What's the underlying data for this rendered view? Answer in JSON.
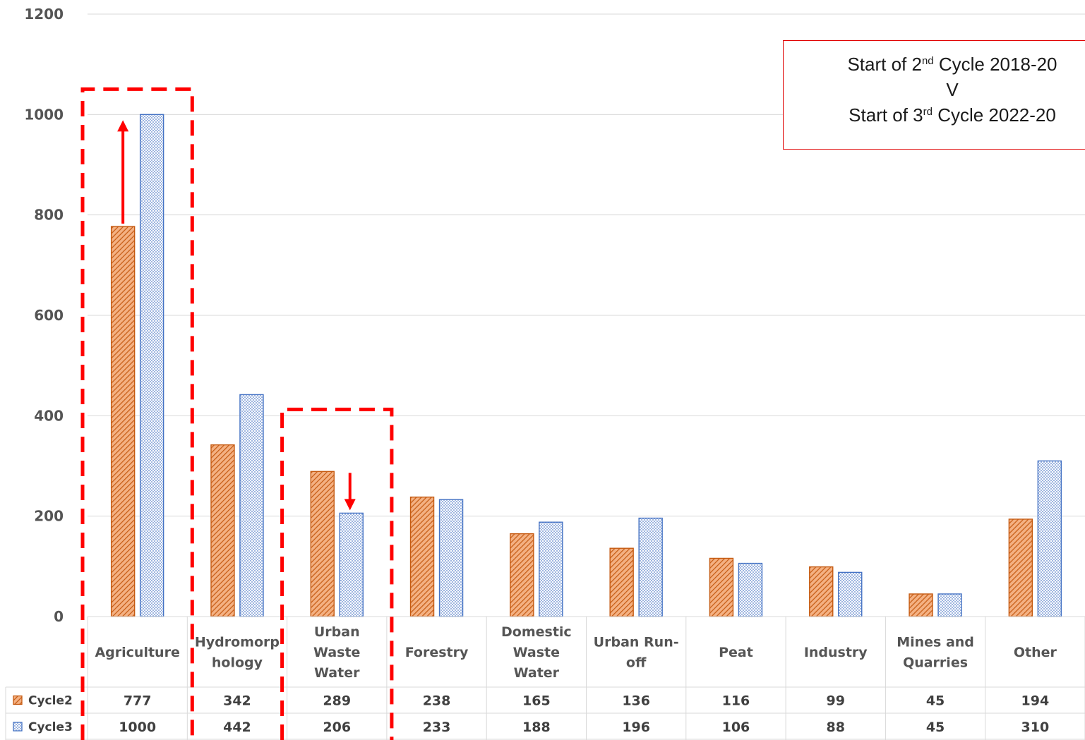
{
  "chart_data": {
    "type": "bar",
    "title": "",
    "xlabel": "",
    "ylabel": "",
    "ylim": [
      0,
      1200
    ],
    "yticks": [
      0,
      200,
      400,
      600,
      800,
      1000,
      1200
    ],
    "grid": true,
    "categories": [
      [
        "Agriculture"
      ],
      [
        "Hydromorp",
        "hology"
      ],
      [
        "Urban",
        "Waste",
        "Water"
      ],
      [
        "Forestry"
      ],
      [
        "Domestic",
        "Waste",
        "Water"
      ],
      [
        "Urban Run-",
        "off"
      ],
      [
        "Peat"
      ],
      [
        "Industry"
      ],
      [
        "Mines and",
        "Quarries"
      ],
      [
        "Other"
      ]
    ],
    "series": [
      {
        "name": "Cycle2",
        "values": [
          777,
          342,
          289,
          238,
          165,
          136,
          116,
          99,
          45,
          194
        ],
        "color": "#c55a11",
        "fill": "#f4b183",
        "pattern": "diagonal-hatch"
      },
      {
        "name": "Cycle3",
        "values": [
          1000,
          442,
          206,
          233,
          188,
          196,
          106,
          88,
          45,
          310
        ],
        "color": "#4472c4",
        "fill": "#b4c7e7",
        "pattern": "checkered"
      }
    ],
    "legend": "data-table",
    "annotations": {
      "comparison_box": {
        "line1_prefix": "Start of 2",
        "line1_sup": "nd",
        "line1_suffix": " Cycle 2018-20",
        "line2": "V",
        "line3_prefix": "Start of 3",
        "line3_sup": "rd",
        "line3_suffix": " Cycle 2022-20",
        "border_color": "#e00000"
      },
      "highlight_color": "#ff0000",
      "highlighted_categories": [
        "Agriculture",
        "Urban Waste Water"
      ],
      "arrows": [
        {
          "category": "Agriculture",
          "direction": "up"
        },
        {
          "category": "Urban Waste Water",
          "direction": "down"
        }
      ]
    }
  }
}
